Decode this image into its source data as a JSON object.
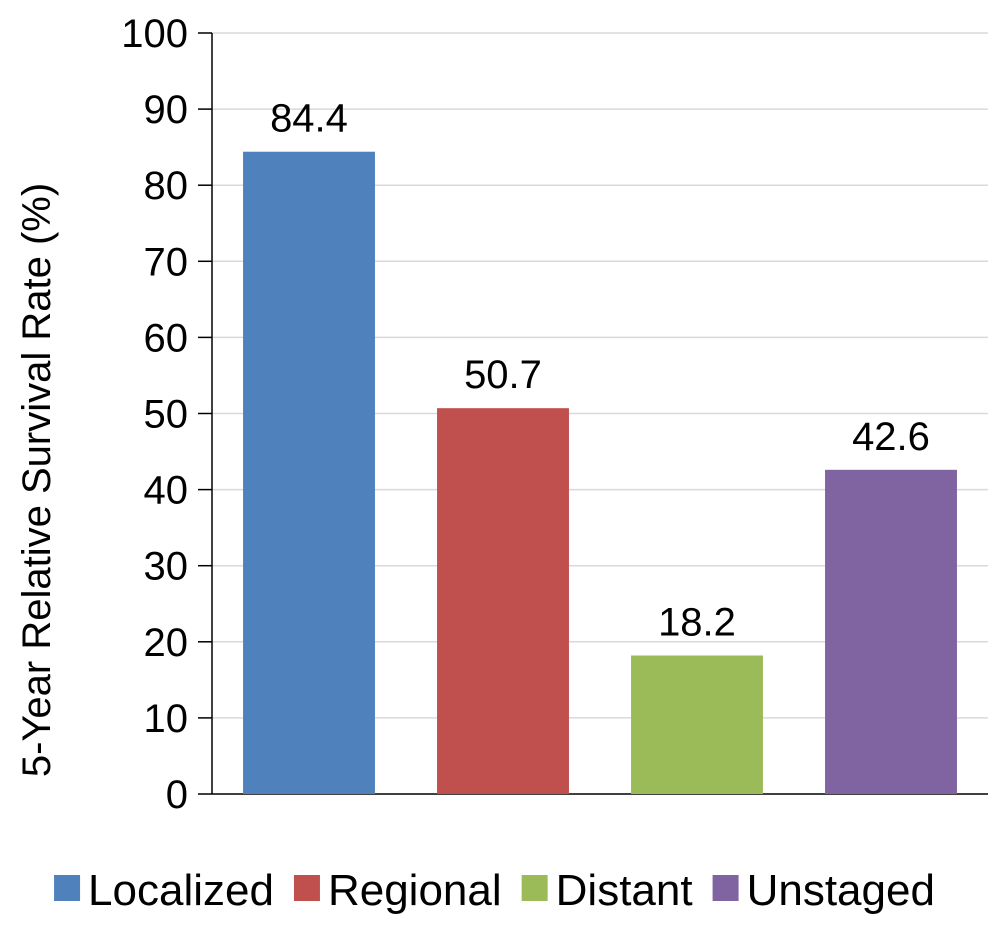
{
  "chart_data": {
    "type": "bar",
    "categories": [
      "Localized",
      "Regional",
      "Distant",
      "Unstaged"
    ],
    "values": [
      84.4,
      50.7,
      18.2,
      42.6
    ],
    "data_labels": [
      "84.4",
      "50.7",
      "18.2",
      "42.6"
    ],
    "colors": [
      "#4F81BD",
      "#C0504D",
      "#9BBB59",
      "#8064A2"
    ],
    "ylabel": "5-Year Relative Survival Rate (%)",
    "xlabel": "",
    "ylim": [
      0,
      100
    ],
    "yticks": [
      "0",
      "10",
      "20",
      "30",
      "40",
      "50",
      "60",
      "70",
      "80",
      "90",
      "100"
    ],
    "grid": true,
    "legend": {
      "position": "bottom",
      "entries": [
        "Localized",
        "Regional",
        "Distant",
        "Unstaged"
      ]
    }
  }
}
